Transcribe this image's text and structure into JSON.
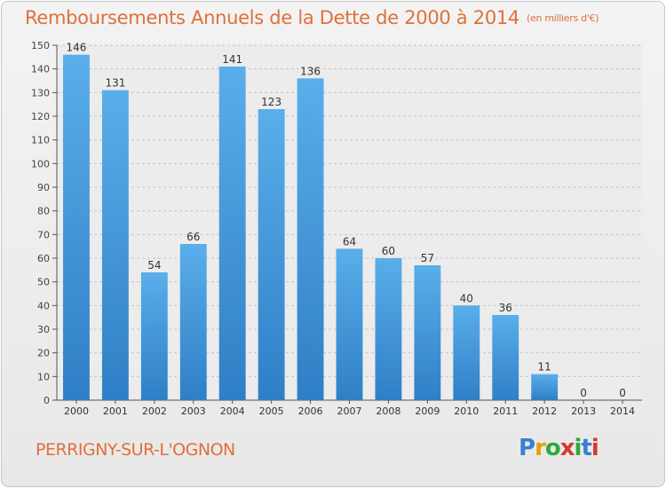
{
  "title": "Remboursements Annuels de la Dette de 2000 à 2014",
  "title_unit": "(en milliers d'€)",
  "footer": {
    "location": "PERRIGNY-SUR-L'OGNON",
    "logo_text": "Proxiti"
  },
  "chart_data": {
    "type": "bar",
    "categories": [
      "2000",
      "2001",
      "2002",
      "2003",
      "2004",
      "2005",
      "2006",
      "2007",
      "2008",
      "2009",
      "2010",
      "2011",
      "2012",
      "2013",
      "2014"
    ],
    "values": [
      146,
      131,
      54,
      66,
      141,
      123,
      136,
      64,
      60,
      57,
      40,
      36,
      11,
      0,
      0
    ],
    "ylim": [
      0,
      150
    ],
    "yticks": [
      0,
      10,
      20,
      30,
      40,
      50,
      60,
      70,
      80,
      90,
      100,
      110,
      120,
      130,
      140,
      150
    ],
    "grid": true,
    "bar_color": "#3d93dc",
    "title_color": "#e0703a"
  }
}
